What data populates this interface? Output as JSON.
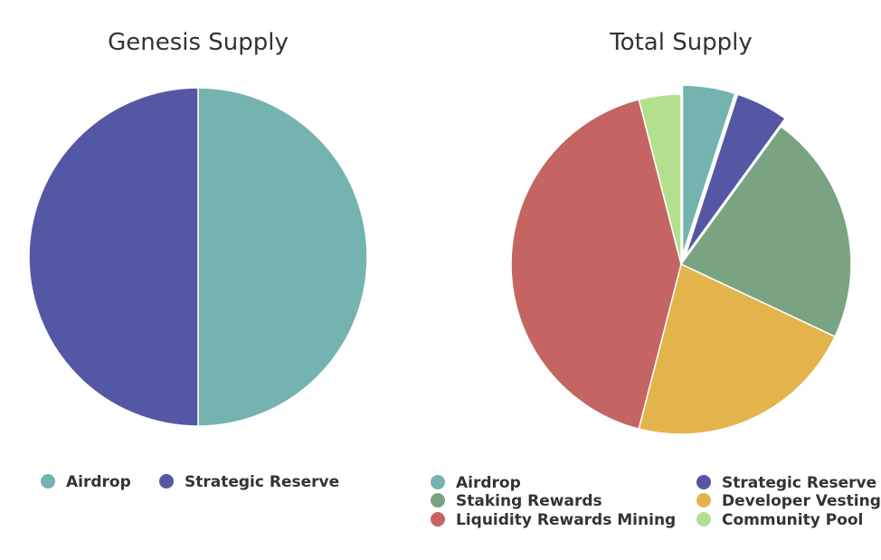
{
  "chart_data": [
    {
      "type": "pie",
      "title": "Genesis Supply",
      "legend": "bottom",
      "series": [
        {
          "name": "Airdrop",
          "value": 50,
          "color": "#74b3b0"
        },
        {
          "name": "Strategic Reserve",
          "value": 50,
          "color": "#5457a3"
        }
      ]
    },
    {
      "type": "pie",
      "title": "Total Supply",
      "legend": "bottom",
      "series": [
        {
          "name": "Airdrop",
          "value": 5,
          "color": "#74b3b0",
          "exploded": true
        },
        {
          "name": "Strategic Reserve",
          "value": 5,
          "color": "#5457a3",
          "exploded": true
        },
        {
          "name": "Staking Rewards",
          "value": 22,
          "color": "#7aa381"
        },
        {
          "name": "Developer Vesting",
          "value": 22,
          "color": "#e3b44c"
        },
        {
          "name": "Liquidity Rewards Mining",
          "value": 42,
          "color": "#c56563"
        },
        {
          "name": "Community Pool",
          "value": 4,
          "color": "#b3e08e"
        }
      ]
    }
  ]
}
